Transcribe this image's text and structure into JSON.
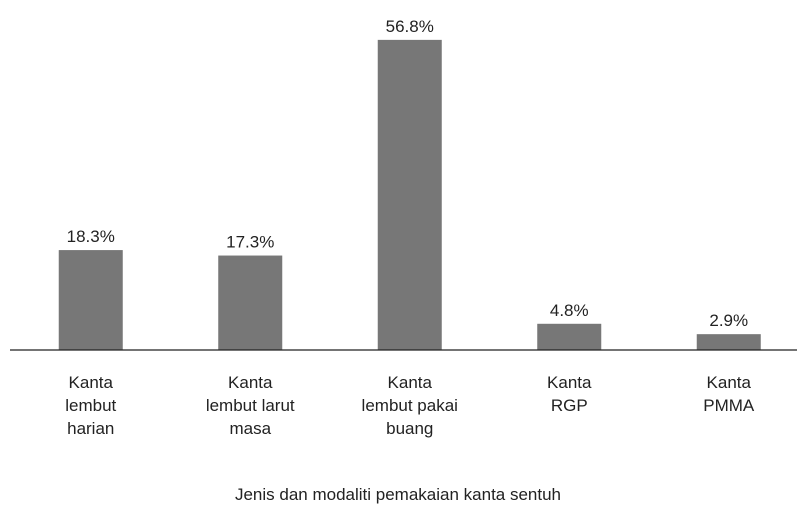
{
  "chart_data": {
    "type": "bar",
    "categories": [
      [
        "Kanta",
        "lembut",
        "harian"
      ],
      [
        "Kanta",
        "lembut larut",
        "masa"
      ],
      [
        "Kanta",
        "lembut pakai",
        "buang"
      ],
      [
        "Kanta",
        "RGP"
      ],
      [
        "Kanta",
        "PMMA"
      ]
    ],
    "values": [
      18.3,
      17.3,
      56.8,
      4.8,
      2.9
    ],
    "value_labels": [
      "18.3%",
      "17.3%",
      "56.8%",
      "4.8%",
      "2.9%"
    ],
    "color": "#777777",
    "x_label": "Jenis dan modaliti pemakaian kanta sentuh"
  }
}
